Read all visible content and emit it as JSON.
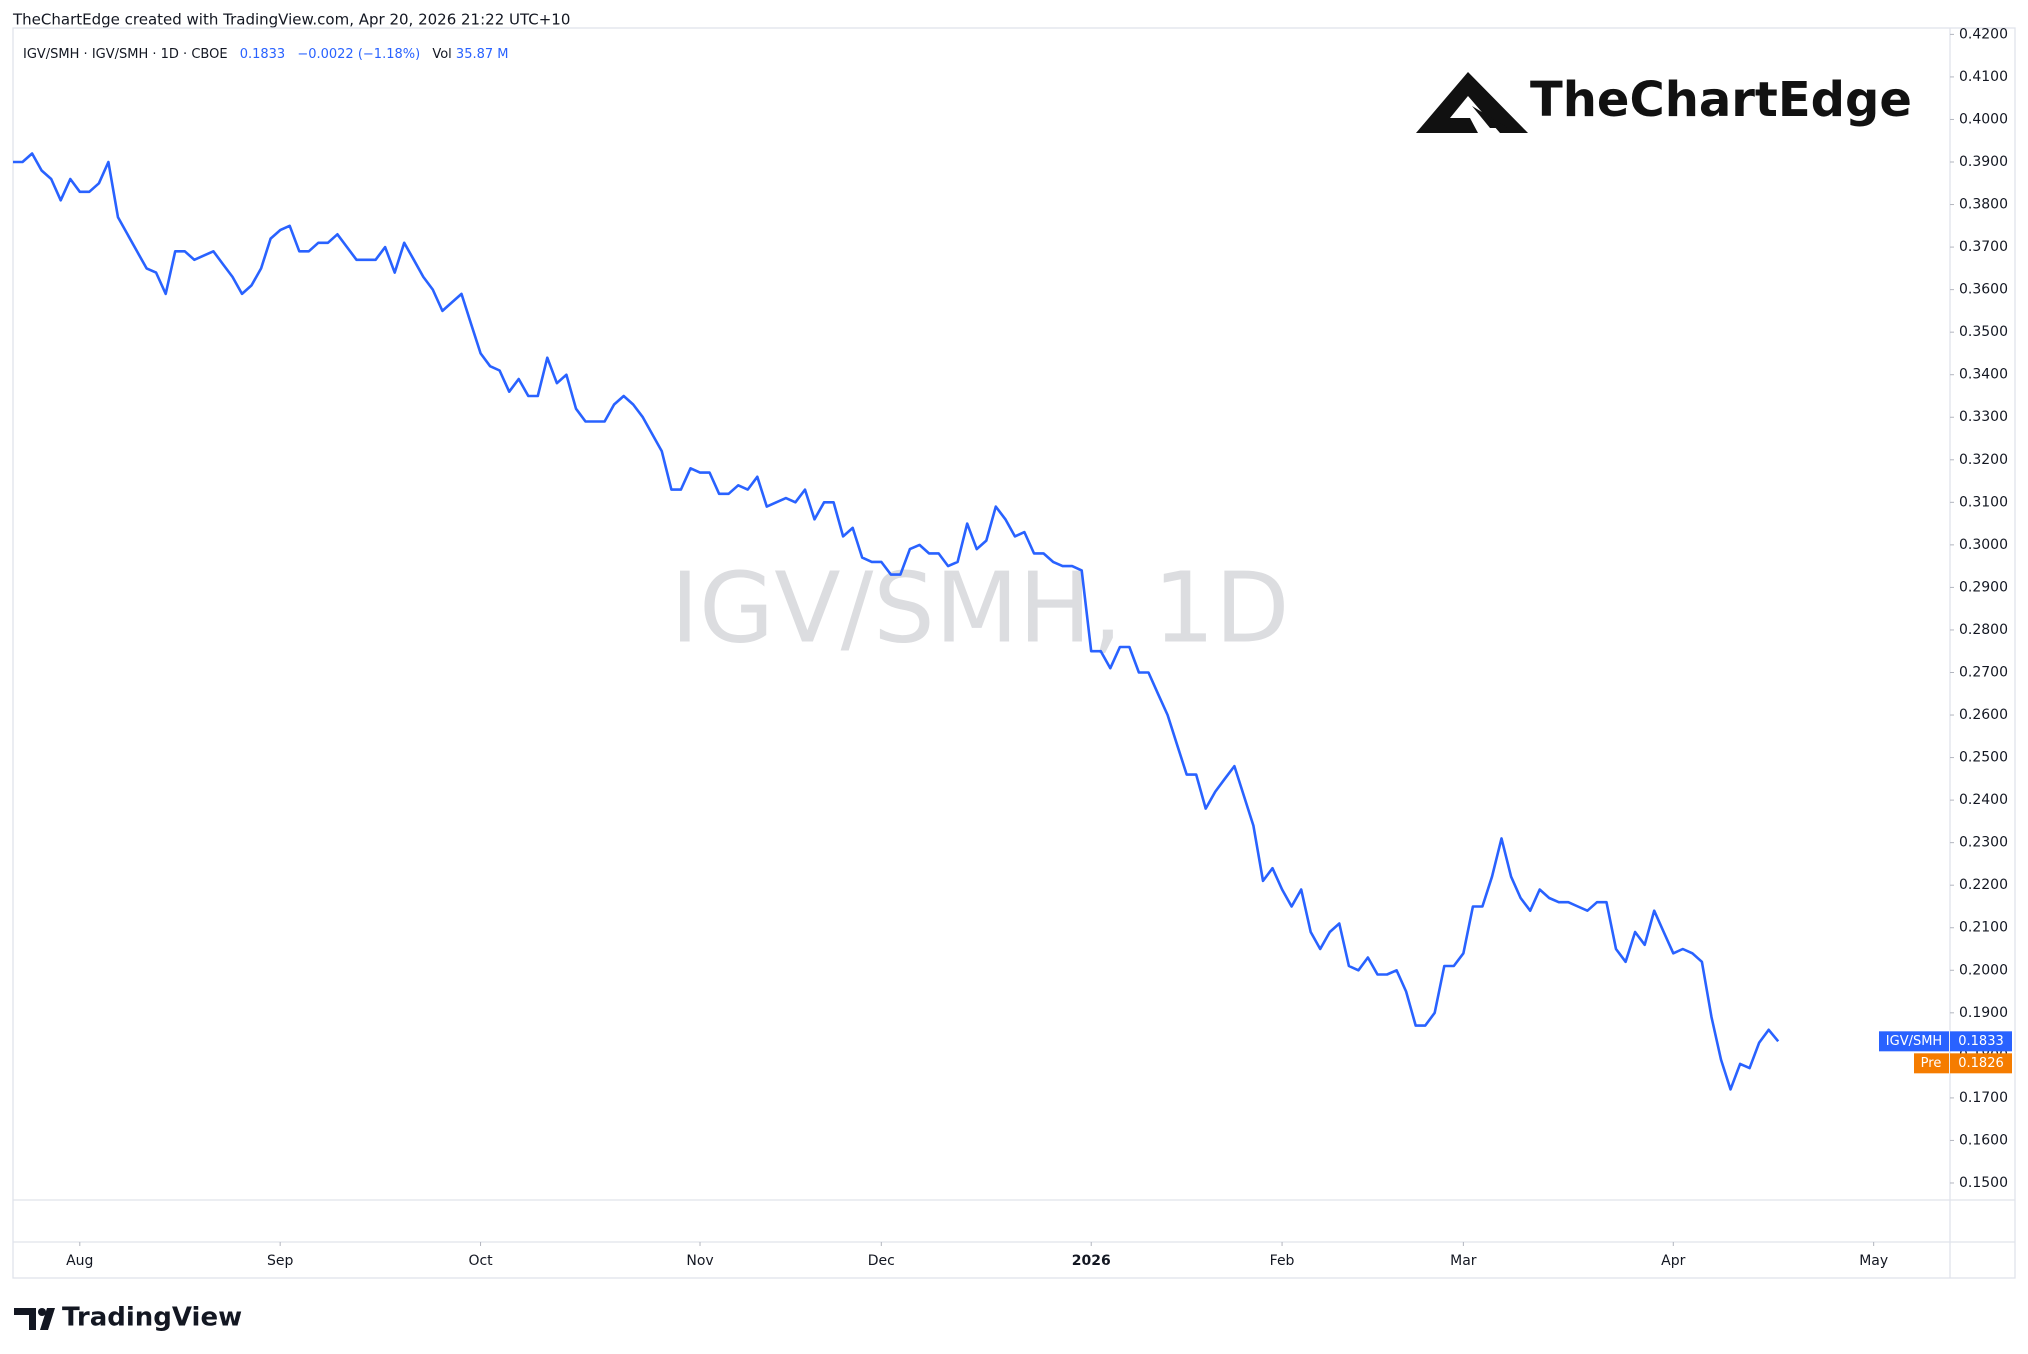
{
  "chart_data": {
    "type": "line",
    "header": "TheChartEdge created with TradingView.com, Apr 20, 2026 21:22 UTC+10",
    "legend": {
      "symbol": "IGV/SMH · IGV/SMH · 1D · CBOE",
      "last": "0.1833",
      "change": "−0.0022 (−1.18%)",
      "vol_label": "Vol",
      "vol_value": "35.87 M"
    },
    "watermark": "IGV/SMH, 1D",
    "logo": "TheChartEdge",
    "footer": "TradingView",
    "series": [
      {
        "name": "IGV/SMH",
        "color": "#2962ff",
        "values": [
          0.39,
          0.39,
          0.392,
          0.388,
          0.386,
          0.381,
          0.386,
          0.383,
          0.383,
          0.385,
          0.39,
          0.377,
          0.373,
          0.369,
          0.365,
          0.364,
          0.359,
          0.369,
          0.369,
          0.367,
          0.368,
          0.369,
          0.366,
          0.363,
          0.359,
          0.361,
          0.365,
          0.372,
          0.374,
          0.375,
          0.369,
          0.369,
          0.371,
          0.371,
          0.373,
          0.37,
          0.367,
          0.367,
          0.367,
          0.37,
          0.364,
          0.371,
          0.367,
          0.363,
          0.36,
          0.355,
          0.357,
          0.359,
          0.352,
          0.345,
          0.342,
          0.341,
          0.336,
          0.339,
          0.335,
          0.335,
          0.344,
          0.338,
          0.34,
          0.332,
          0.329,
          0.329,
          0.329,
          0.333,
          0.335,
          0.333,
          0.33,
          0.326,
          0.322,
          0.313,
          0.313,
          0.318,
          0.317,
          0.317,
          0.312,
          0.312,
          0.314,
          0.313,
          0.316,
          0.309,
          0.31,
          0.311,
          0.31,
          0.313,
          0.306,
          0.31,
          0.31,
          0.302,
          0.304,
          0.297,
          0.296,
          0.296,
          0.293,
          0.293,
          0.299,
          0.3,
          0.298,
          0.298,
          0.295,
          0.296,
          0.305,
          0.299,
          0.301,
          0.309,
          0.306,
          0.302,
          0.303,
          0.298,
          0.298,
          0.296,
          0.295,
          0.295,
          0.294,
          0.275,
          0.275,
          0.271,
          0.276,
          0.276,
          0.27,
          0.27,
          0.265,
          0.26,
          0.253,
          0.246,
          0.246,
          0.238,
          0.242,
          0.245,
          0.248,
          0.241,
          0.234,
          0.221,
          0.224,
          0.219,
          0.215,
          0.219,
          0.209,
          0.205,
          0.209,
          0.211,
          0.201,
          0.2,
          0.203,
          0.199,
          0.199,
          0.2,
          0.195,
          0.187,
          0.187,
          0.19,
          0.201,
          0.201,
          0.204,
          0.215,
          0.215,
          0.222,
          0.231,
          0.222,
          0.217,
          0.214,
          0.219,
          0.217,
          0.216,
          0.216,
          0.215,
          0.214,
          0.216,
          0.216,
          0.205,
          0.202,
          0.209,
          0.206,
          0.214,
          0.209,
          0.204,
          0.205,
          0.204,
          0.202,
          0.189,
          0.179,
          0.172,
          0.178,
          0.177,
          0.183,
          0.186,
          0.1833
        ]
      }
    ],
    "last_price": 0.1833,
    "pre_market": {
      "name": "Pre",
      "value": 0.1826,
      "color": "#f57c00"
    },
    "xlim": [
      0,
      203
    ],
    "xticks": [
      {
        "value": 7,
        "label": "Aug"
      },
      {
        "value": 28,
        "label": "Sep"
      },
      {
        "value": 49,
        "label": "Oct"
      },
      {
        "value": 72,
        "label": "Nov"
      },
      {
        "value": 91,
        "label": "Dec"
      },
      {
        "value": 113,
        "label": "2026"
      },
      {
        "value": 133,
        "label": "Feb"
      },
      {
        "value": 152,
        "label": "Mar"
      },
      {
        "value": 174,
        "label": "Apr"
      },
      {
        "value": 195,
        "label": "May"
      }
    ],
    "ylim": [
      0.146,
      0.4215
    ],
    "yticks": [
      {
        "value": 0.15,
        "label": "0.1500"
      },
      {
        "value": 0.16,
        "label": "0.1600"
      },
      {
        "value": 0.17,
        "label": "0.1700"
      },
      {
        "value": 0.18,
        "label": "0.1800"
      },
      {
        "value": 0.19,
        "label": "0.1900"
      },
      {
        "value": 0.2,
        "label": "0.2000"
      },
      {
        "value": 0.21,
        "label": "0.2100"
      },
      {
        "value": 0.22,
        "label": "0.2200"
      },
      {
        "value": 0.23,
        "label": "0.2300"
      },
      {
        "value": 0.24,
        "label": "0.2400"
      },
      {
        "value": 0.25,
        "label": "0.2500"
      },
      {
        "value": 0.26,
        "label": "0.2600"
      },
      {
        "value": 0.27,
        "label": "0.2700"
      },
      {
        "value": 0.28,
        "label": "0.2800"
      },
      {
        "value": 0.29,
        "label": "0.2900"
      },
      {
        "value": 0.3,
        "label": "0.3000"
      },
      {
        "value": 0.31,
        "label": "0.3100"
      },
      {
        "value": 0.32,
        "label": "0.3200"
      },
      {
        "value": 0.33,
        "label": "0.3300"
      },
      {
        "value": 0.34,
        "label": "0.3400"
      },
      {
        "value": 0.35,
        "label": "0.3500"
      },
      {
        "value": 0.36,
        "label": "0.3600"
      },
      {
        "value": 0.37,
        "label": "0.3700"
      },
      {
        "value": 0.38,
        "label": "0.3800"
      },
      {
        "value": 0.39,
        "label": "0.3900"
      },
      {
        "value": 0.4,
        "label": "0.4000"
      },
      {
        "value": 0.41,
        "label": "0.4100"
      },
      {
        "value": 0.42,
        "label": "0.4200"
      }
    ],
    "grid": false
  }
}
